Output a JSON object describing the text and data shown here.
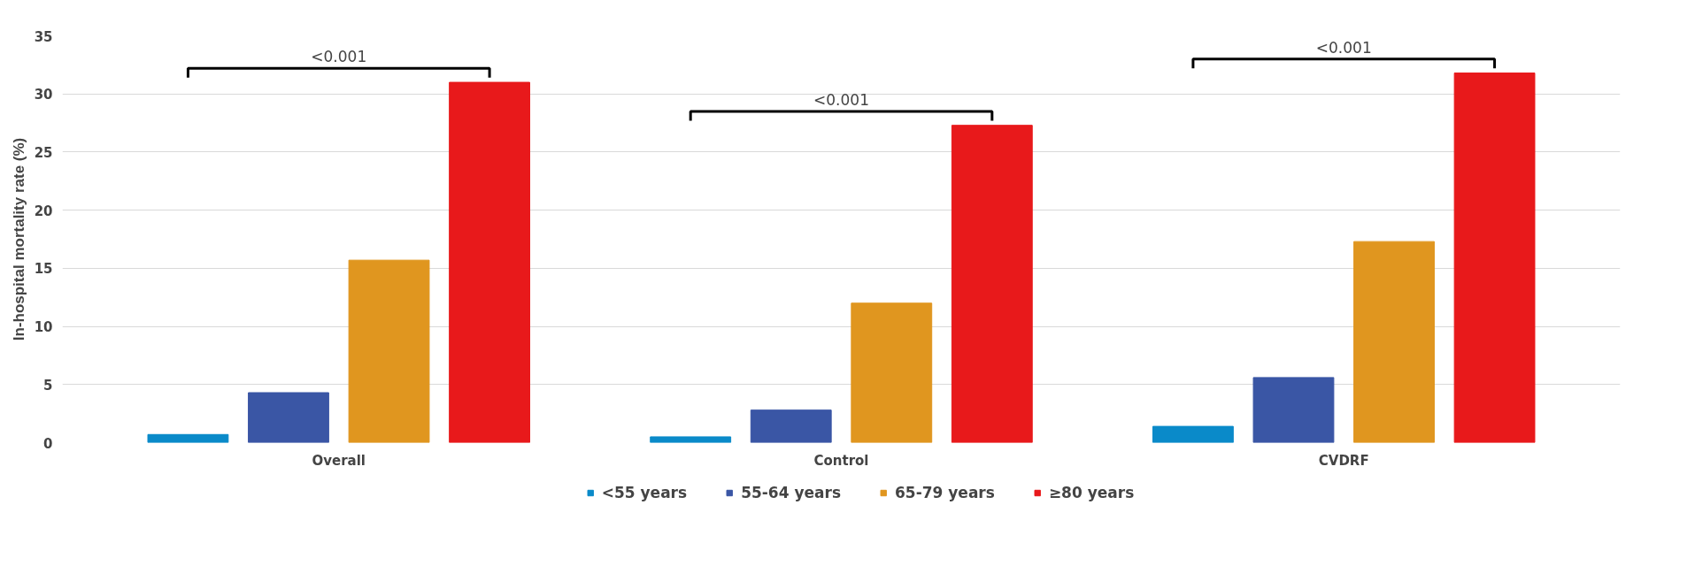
{
  "chart_data": {
    "type": "bar",
    "ylabel": "In-hospital mortality rate (%)",
    "categories": [
      "Overall",
      "Control",
      "CVDRF"
    ],
    "series": [
      {
        "name": "<55 years",
        "color": "#0a8ac9",
        "values": [
          0.7,
          0.5,
          1.4
        ]
      },
      {
        "name": "55-64 years",
        "color": "#3a56a5",
        "values": [
          4.3,
          2.8,
          5.6
        ]
      },
      {
        "name": "65-79 years",
        "color": "#e0961f",
        "values": [
          15.7,
          12.0,
          17.3
        ]
      },
      {
        "name": "≥80 years",
        "color": "#e8191b",
        "values": [
          31.0,
          27.3,
          31.8
        ]
      }
    ],
    "ylim": [
      0,
      35
    ],
    "yticks": [
      0,
      5,
      10,
      15,
      20,
      25,
      30,
      35
    ],
    "grid": "y",
    "legend": "bottom",
    "annotations": [
      "<0.001",
      "<0.001",
      "<0.001"
    ]
  }
}
